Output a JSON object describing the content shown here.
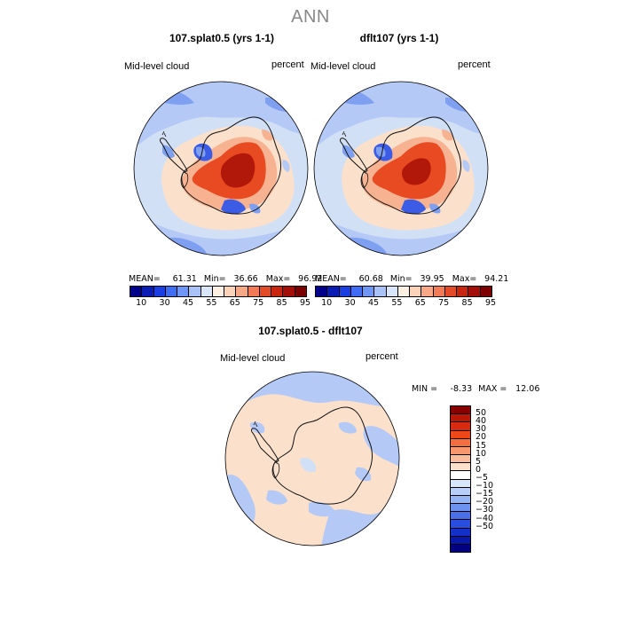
{
  "page_title": "ANN",
  "panels": [
    {
      "title": "107.splat0.5 (yrs 1-1)",
      "field": "Mid-level cloud",
      "units": "percent",
      "stats": {
        "mean_label": "MEAN=",
        "mean": "61.31",
        "min_label": "Min=",
        "min": "36.66",
        "max_label": "Max=",
        "max": "96.92"
      }
    },
    {
      "title": "dflt107 (yrs 1-1)",
      "field": "Mid-level cloud",
      "units": "percent",
      "stats": {
        "mean_label": "MEAN=",
        "mean": "60.68",
        "min_label": "Min=",
        "min": "39.95",
        "max_label": "Max=",
        "max": "94.21"
      }
    }
  ],
  "top_colorbar": {
    "colors": [
      "#00008b",
      "#0a1cb4",
      "#1a3ee0",
      "#3f6cf2",
      "#6f96f6",
      "#a8c2f8",
      "#d9e5fb",
      "#fdf0e2",
      "#fcd2b8",
      "#f9a887",
      "#f27a56",
      "#e34a28",
      "#c8260f",
      "#a30f08",
      "#7c0000"
    ],
    "ticks": [
      "10",
      "30",
      "45",
      "55",
      "65",
      "75",
      "85",
      "95"
    ]
  },
  "difference_panel": {
    "title": "107.splat0.5 - dflt107",
    "field": "Mid-level cloud",
    "units": "percent",
    "stats": {
      "min_label": "MIN =",
      "min": "-8.33",
      "max_label": "MAX =",
      "max": "12.06"
    }
  },
  "diff_colorbar": {
    "colors": [
      "#880000",
      "#b81808",
      "#d82a10",
      "#ee4818",
      "#f56e40",
      "#f8966e",
      "#fbbc9c",
      "#fde0cc",
      "#ffffff",
      "#d8e6fb",
      "#b8cff8",
      "#95b5f4",
      "#6e93ee",
      "#4a6fe8",
      "#2a4ee0",
      "#1530c8",
      "#0818a8",
      "#000080"
    ],
    "ticks": [
      "50",
      "40",
      "30",
      "20",
      "15",
      "10",
      "5",
      "0",
      "−5",
      "−10",
      "−15",
      "−20",
      "−30",
      "−40",
      "−50"
    ]
  },
  "map_colors": {
    "ocean": "#d2e0f6",
    "light_blue": "#b4c9f6",
    "mid_blue": "#7f9ff0",
    "dark_blue": "#3c5ce6",
    "peach": "#fbe1cc",
    "salmon": "#f7b391",
    "red": "#e84a22",
    "dark_red": "#b1180a",
    "coast": "#111111"
  }
}
